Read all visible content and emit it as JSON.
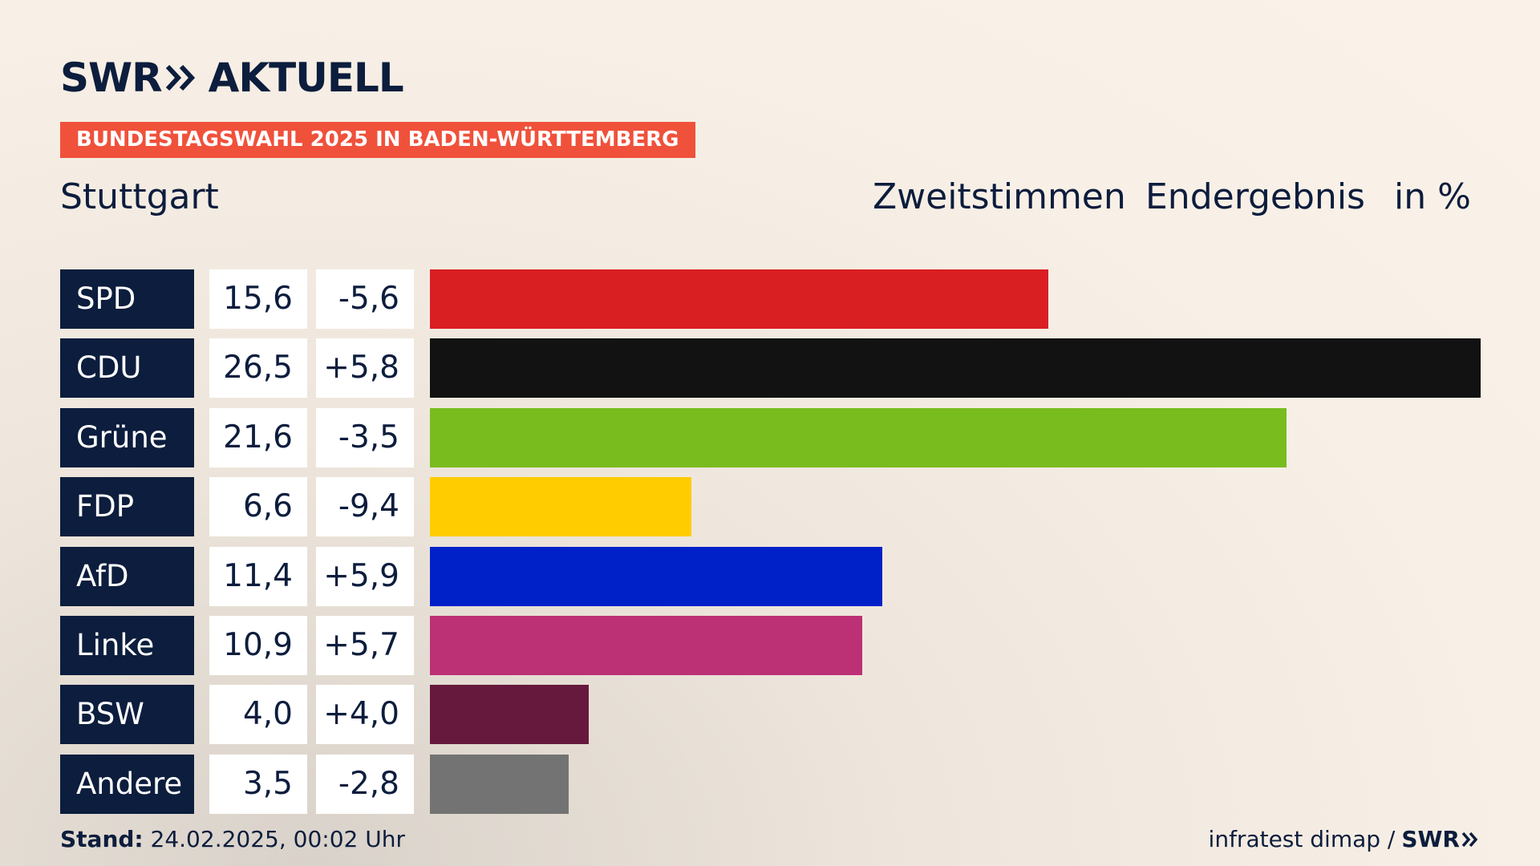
{
  "header": {
    "logo_swr": "SWR",
    "logo_aktuell": "AKTUELL",
    "banner": "BUNDESTAGSWAHL 2025 IN BADEN-WÜRTTEMBERG",
    "location": "Stuttgart",
    "label_vote": "Zweitstimmen",
    "label_result": "Endergebnis",
    "label_unit": "in %"
  },
  "chart_data": {
    "type": "bar",
    "categories": [
      "SPD",
      "CDU",
      "Grüne",
      "FDP",
      "AfD",
      "Linke",
      "BSW",
      "Andere"
    ],
    "values": [
      15.6,
      26.5,
      21.6,
      6.6,
      11.4,
      10.9,
      4.0,
      3.5
    ],
    "value_labels": [
      "15,6",
      "26,5",
      "21,6",
      "6,6",
      "11,4",
      "10,9",
      "4,0",
      "3,5"
    ],
    "diff_labels": [
      "-5,6",
      "+5,8",
      "-3,5",
      "-9,4",
      "+5,9",
      "+5,7",
      "+4,0",
      "-2,8"
    ],
    "colors": [
      "#d91f22",
      "#121212",
      "#78bc1e",
      "#ffcc00",
      "#0021c8",
      "#bc3076",
      "#66193c",
      "#737373"
    ]
  },
  "footer": {
    "stand_label": "Stand:",
    "stand_value": "24.02.2025, 00:02 Uhr",
    "source": "infratest dimap /",
    "source_logo": "SWR"
  }
}
